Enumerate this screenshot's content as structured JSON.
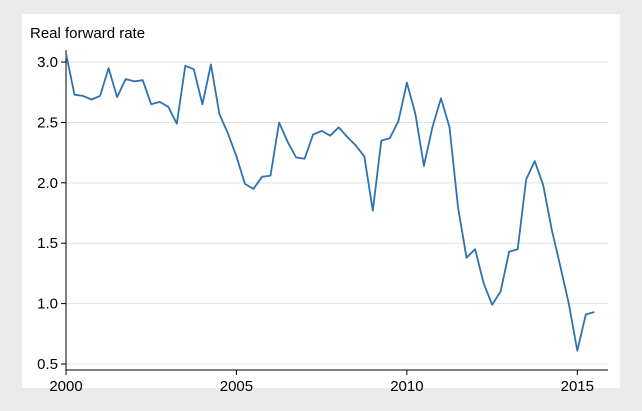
{
  "chart_data": {
    "type": "line",
    "title": "",
    "ylabel": "Real forward rate",
    "xlabel": "",
    "xlim": [
      2000,
      2015.9
    ],
    "ylim": [
      0.45,
      3.1
    ],
    "x_ticks": [
      2000,
      2005,
      2010,
      2015
    ],
    "x_tick_labels": [
      "2000",
      "2005",
      "2010",
      "2015"
    ],
    "y_ticks": [
      0.5,
      1.0,
      1.5,
      2.0,
      2.5,
      3.0
    ],
    "y_tick_labels": [
      "0.5",
      "1.0",
      "1.5",
      "2.0",
      "2.5",
      "3.0"
    ],
    "grid": "horizontal",
    "legend": "none",
    "line_color": "#2e72b2",
    "series": [
      {
        "x": [
          2000.0,
          2000.25,
          2000.5,
          2000.75,
          2001.0,
          2001.25,
          2001.5,
          2001.75,
          2002.0,
          2002.25,
          2002.5,
          2002.75,
          2003.0,
          2003.25,
          2003.5,
          2003.75,
          2004.0,
          2004.25,
          2004.5,
          2004.75,
          2005.0,
          2005.25,
          2005.5,
          2005.75,
          2006.0,
          2006.25,
          2006.5,
          2006.75,
          2007.0,
          2007.25,
          2007.5,
          2007.75,
          2008.0,
          2008.25,
          2008.5,
          2008.75,
          2009.0,
          2009.25,
          2009.5,
          2009.75,
          2010.0,
          2010.25,
          2010.5,
          2010.75,
          2011.0,
          2011.25,
          2011.5,
          2011.75,
          2012.0,
          2012.25,
          2012.5,
          2012.75,
          2013.0,
          2013.25,
          2013.5,
          2013.75,
          2014.0,
          2014.25,
          2014.5,
          2014.75,
          2015.0,
          2015.25,
          2015.5
        ],
        "values": [
          3.07,
          2.73,
          2.72,
          2.69,
          2.72,
          2.95,
          2.71,
          2.86,
          2.84,
          2.85,
          2.65,
          2.67,
          2.63,
          2.49,
          2.97,
          2.94,
          2.65,
          2.98,
          2.57,
          2.41,
          2.22,
          1.99,
          1.95,
          2.05,
          2.06,
          2.5,
          2.34,
          2.21,
          2.2,
          2.4,
          2.43,
          2.39,
          2.46,
          2.38,
          2.31,
          2.22,
          1.77,
          2.35,
          2.37,
          2.51,
          2.83,
          2.57,
          2.14,
          2.46,
          2.7,
          2.46,
          1.8,
          1.38,
          1.45,
          1.17,
          0.99,
          1.1,
          1.43,
          1.45,
          2.03,
          2.18,
          1.98,
          1.61,
          1.31,
          1.0,
          0.61,
          0.91,
          0.93
        ]
      }
    ]
  }
}
